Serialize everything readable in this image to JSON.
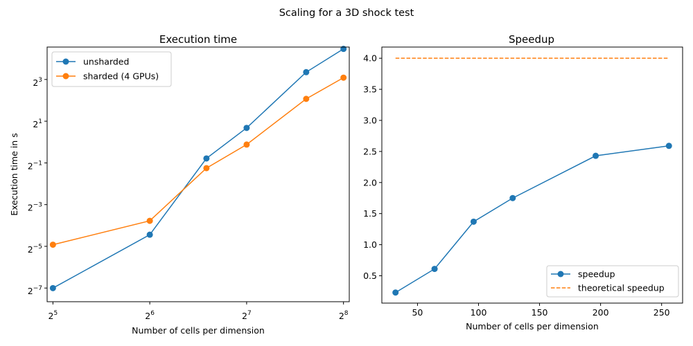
{
  "figure": {
    "suptitle": "Scaling for a 3D shock test"
  },
  "colors": {
    "blue": "#1f77b4",
    "orange": "#ff7f0e",
    "axis": "#000000"
  },
  "chart_data": [
    {
      "type": "line",
      "title": "Execution time",
      "xlabel": "Number of cells per dimension",
      "ylabel": "Execution time in s",
      "x_scale": "log2",
      "y_scale": "log2",
      "xlim": [
        30.7,
        266.8
      ],
      "ylim": [
        0.00496,
        23.5
      ],
      "x_ticks": [
        {
          "value": 32,
          "base": "2",
          "exp": "5"
        },
        {
          "value": 64,
          "base": "2",
          "exp": "6"
        },
        {
          "value": 128,
          "base": "2",
          "exp": "7"
        },
        {
          "value": 256,
          "base": "2",
          "exp": "8"
        }
      ],
      "y_ticks": [
        {
          "value": 0.0078125,
          "base": "2",
          "exp": "−7"
        },
        {
          "value": 0.03125,
          "base": "2",
          "exp": "−5"
        },
        {
          "value": 0.125,
          "base": "2",
          "exp": "−3"
        },
        {
          "value": 0.5,
          "base": "2",
          "exp": "−1"
        },
        {
          "value": 2,
          "base": "2",
          "exp": "1"
        },
        {
          "value": 8,
          "base": "2",
          "exp": "3"
        }
      ],
      "legend_position": "upper-left",
      "x": [
        32,
        64,
        96,
        128,
        196,
        256
      ],
      "series": [
        {
          "name": "unsharded",
          "color": "#1f77b4",
          "style": "solid-marker",
          "values": [
            0.0078,
            0.046,
            0.58,
            1.6,
            10.2,
            22.1
          ]
        },
        {
          "name": "sharded (4 GPUs)",
          "color": "#ff7f0e",
          "style": "solid-marker",
          "values": [
            0.033,
            0.073,
            0.42,
            0.92,
            4.2,
            8.5
          ]
        }
      ]
    },
    {
      "type": "line",
      "title": "Speedup",
      "xlabel": "Number of cells per dimension",
      "ylabel": "",
      "xlim": [
        20.8,
        267.2
      ],
      "ylim": [
        0.06,
        4.18
      ],
      "x_ticks": [
        {
          "value": 50,
          "label": "50"
        },
        {
          "value": 100,
          "label": "100"
        },
        {
          "value": 150,
          "label": "150"
        },
        {
          "value": 200,
          "label": "200"
        },
        {
          "value": 250,
          "label": "250"
        }
      ],
      "y_ticks": [
        {
          "value": 0.5,
          "label": "0.5"
        },
        {
          "value": 1.0,
          "label": "1.0"
        },
        {
          "value": 1.5,
          "label": "1.5"
        },
        {
          "value": 2.0,
          "label": "2.0"
        },
        {
          "value": 2.5,
          "label": "2.5"
        },
        {
          "value": 3.0,
          "label": "3.0"
        },
        {
          "value": 3.5,
          "label": "3.5"
        },
        {
          "value": 4.0,
          "label": "4.0"
        }
      ],
      "legend_position": "lower-right",
      "series": [
        {
          "name": "speedup",
          "color": "#1f77b4",
          "style": "solid-marker",
          "x": [
            32,
            64,
            96,
            128,
            196,
            256
          ],
          "values": [
            0.23,
            0.61,
            1.37,
            1.75,
            2.43,
            2.59
          ]
        },
        {
          "name": "theoretical speedup",
          "color": "#ff7f0e",
          "style": "dashed",
          "x": [
            32,
            256
          ],
          "values": [
            4.0,
            4.0
          ]
        }
      ]
    }
  ]
}
